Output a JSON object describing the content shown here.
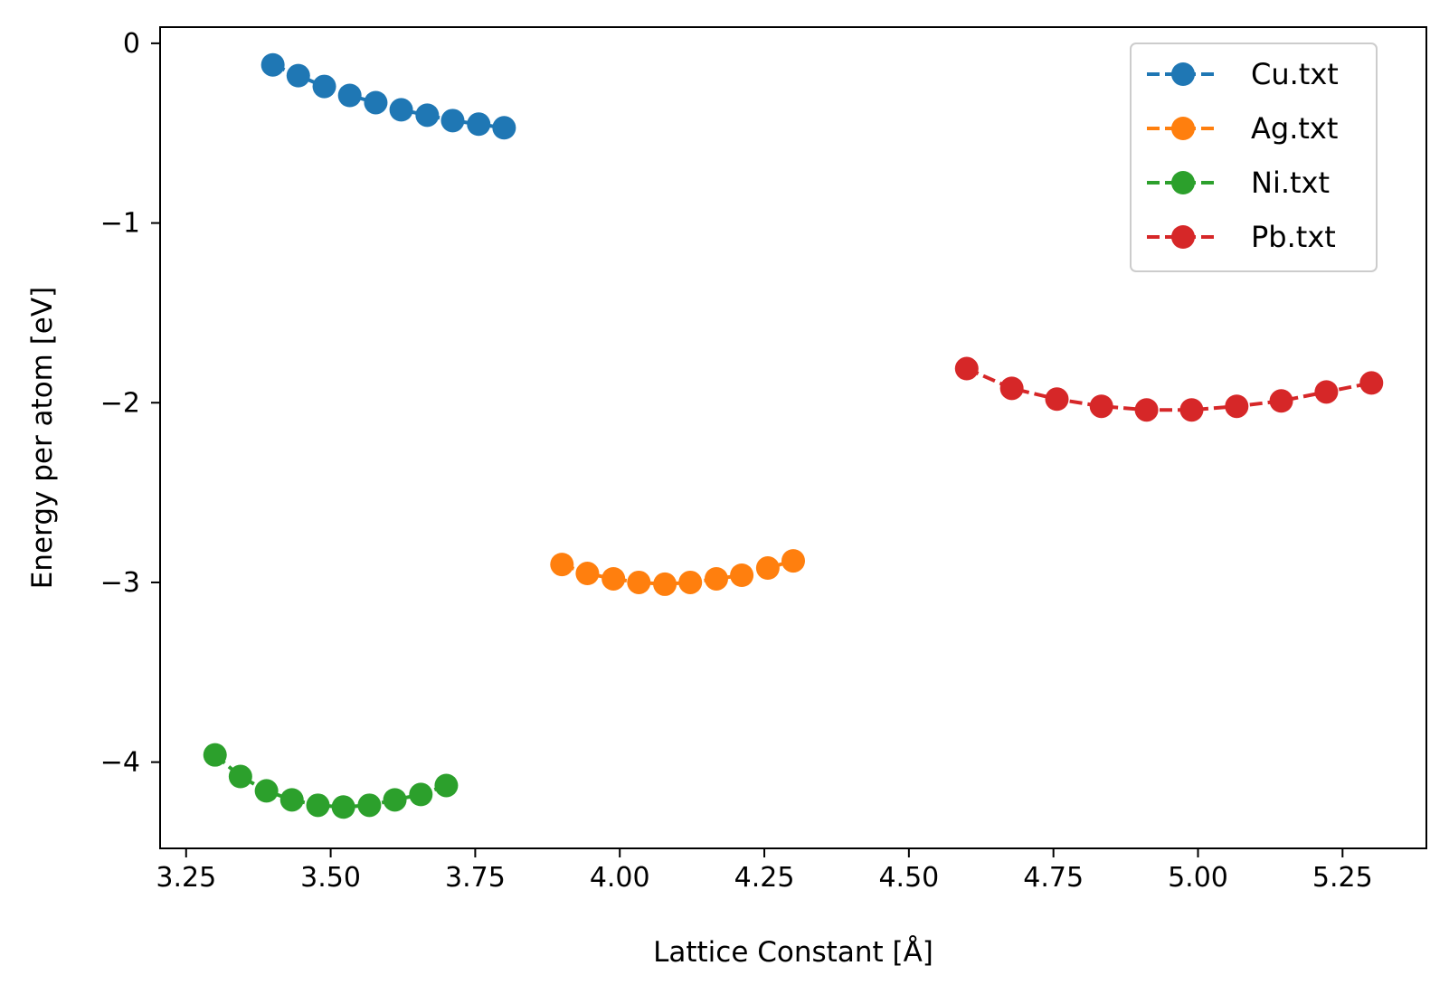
{
  "chart_data": {
    "type": "line",
    "title": "",
    "xlabel": "Lattice Constant [Å]",
    "ylabel": "Energy per atom [eV]",
    "xlim": [
      3.205,
      5.395
    ],
    "ylim": [
      -4.48,
      0.09
    ],
    "xticks": [
      3.25,
      3.5,
      3.75,
      4.0,
      4.25,
      4.5,
      4.75,
      5.0,
      5.25
    ],
    "xtick_labels": [
      "3.25",
      "3.50",
      "3.75",
      "4.00",
      "4.25",
      "4.50",
      "4.75",
      "5.00",
      "5.25"
    ],
    "yticks": [
      0,
      -1,
      -2,
      -3,
      -4
    ],
    "ytick_labels": [
      "0",
      "−1",
      "−2",
      "−3",
      "−4"
    ],
    "grid": false,
    "legend_position": "top-right",
    "line_style": "dashed",
    "marker": "circle",
    "series": [
      {
        "name": "Cu.txt",
        "color": "#1f77b4",
        "x": [
          3.4,
          3.444,
          3.489,
          3.533,
          3.578,
          3.622,
          3.667,
          3.711,
          3.756,
          3.8
        ],
        "y": [
          -0.12,
          -0.18,
          -0.24,
          -0.29,
          -0.33,
          -0.37,
          -0.4,
          -0.43,
          -0.45,
          -0.47
        ]
      },
      {
        "name": "Ag.txt",
        "color": "#ff7f0e",
        "x": [
          3.9,
          3.944,
          3.989,
          4.033,
          4.078,
          4.122,
          4.167,
          4.211,
          4.256,
          4.3
        ],
        "y": [
          -2.9,
          -2.95,
          -2.98,
          -3.0,
          -3.01,
          -3.0,
          -2.98,
          -2.96,
          -2.92,
          -2.88
        ]
      },
      {
        "name": "Ni.txt",
        "color": "#2ca02c",
        "x": [
          3.3,
          3.344,
          3.389,
          3.433,
          3.478,
          3.522,
          3.567,
          3.611,
          3.656,
          3.7
        ],
        "y": [
          -3.96,
          -4.08,
          -4.16,
          -4.21,
          -4.24,
          -4.25,
          -4.24,
          -4.21,
          -4.18,
          -4.13
        ]
      },
      {
        "name": "Pb.txt",
        "color": "#d62728",
        "x": [
          4.6,
          4.678,
          4.756,
          4.833,
          4.911,
          4.989,
          5.067,
          5.144,
          5.222,
          5.3
        ],
        "y": [
          -1.81,
          -1.92,
          -1.98,
          -2.02,
          -2.04,
          -2.04,
          -2.02,
          -1.99,
          -1.94,
          -1.89
        ]
      }
    ]
  }
}
